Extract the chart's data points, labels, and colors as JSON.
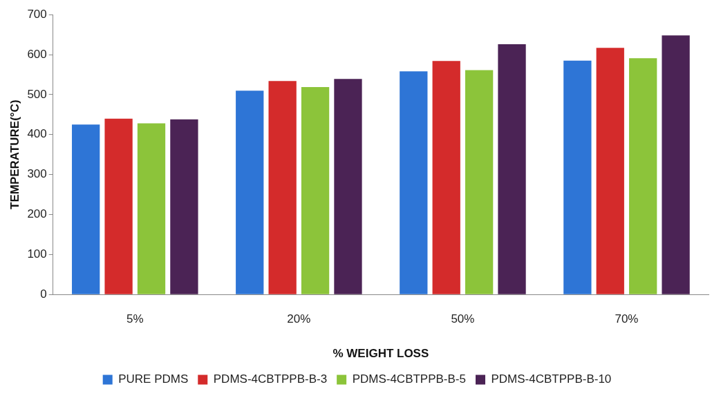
{
  "chart_data": {
    "type": "bar",
    "xlabel": "% WEIGHT LOSS",
    "ylabel": "TEMPERATURE(°C)",
    "categories": [
      "5%",
      "20%",
      "50%",
      "70%"
    ],
    "series": [
      {
        "name": "PURE PDMS",
        "color": "#2e75d6",
        "values": [
          425,
          510,
          558,
          585
        ]
      },
      {
        "name": "PDMS-4CBTPPB-B-3",
        "color": "#d42b2b",
        "values": [
          440,
          534,
          584,
          617
        ]
      },
      {
        "name": "PDMS-4CBTPPB-B-5",
        "color": "#8cc43a",
        "values": [
          428,
          519,
          561,
          591
        ]
      },
      {
        "name": "PDMS-4CBTPPB-B-10",
        "color": "#4b2355",
        "values": [
          438,
          539,
          626,
          648
        ]
      }
    ],
    "ylim": [
      0,
      700
    ],
    "yticks": [
      0,
      100,
      200,
      300,
      400,
      500,
      600,
      700
    ],
    "grid": false,
    "legend": "bottom"
  }
}
